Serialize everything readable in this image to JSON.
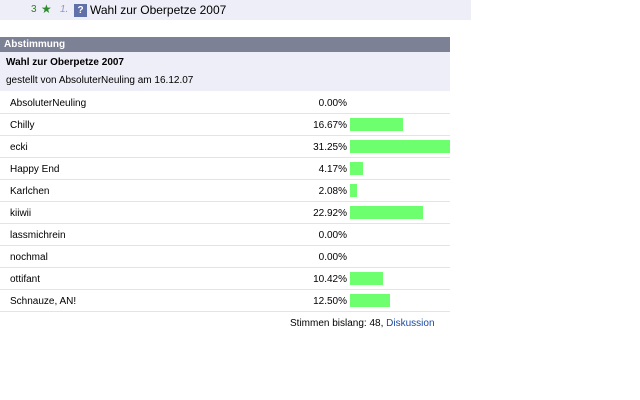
{
  "topbar": {
    "count": "3",
    "rank": "1.",
    "question_icon": "?",
    "title": "Wahl zur Oberpetze 2007"
  },
  "panel": {
    "header": "Abstimmung",
    "poll_title": "Wahl zur Oberpetze 2007",
    "meta": "gestellt von AbsoluterNeuling am 16.12.07"
  },
  "options": [
    {
      "name": "AbsoluterNeuling",
      "percent_label": "0.00%",
      "percent": 0.0
    },
    {
      "name": "Chilly",
      "percent_label": "16.67%",
      "percent": 16.67
    },
    {
      "name": "ecki",
      "percent_label": "31.25%",
      "percent": 31.25
    },
    {
      "name": "Happy End",
      "percent_label": "4.17%",
      "percent": 4.17
    },
    {
      "name": "Karlchen",
      "percent_label": "2.08%",
      "percent": 2.08
    },
    {
      "name": "kiiwii",
      "percent_label": "22.92%",
      "percent": 22.92
    },
    {
      "name": "lassmichrein",
      "percent_label": "0.00%",
      "percent": 0.0
    },
    {
      "name": "nochmal",
      "percent_label": "0.00%",
      "percent": 0.0
    },
    {
      "name": "ottifant",
      "percent_label": "10.42%",
      "percent": 10.42
    },
    {
      "name": "Schnauze, AN!",
      "percent_label": "12.50%",
      "percent": 12.5
    }
  ],
  "footer": {
    "votes_text": "Stimmen bislang: 48,",
    "discussion_link": "Diskussion"
  },
  "colors": {
    "bar": "#6eff6e",
    "header_bg": "#7d8196",
    "info_bg": "#eeeef8"
  },
  "icons": [
    "star-icon",
    "question-icon"
  ]
}
